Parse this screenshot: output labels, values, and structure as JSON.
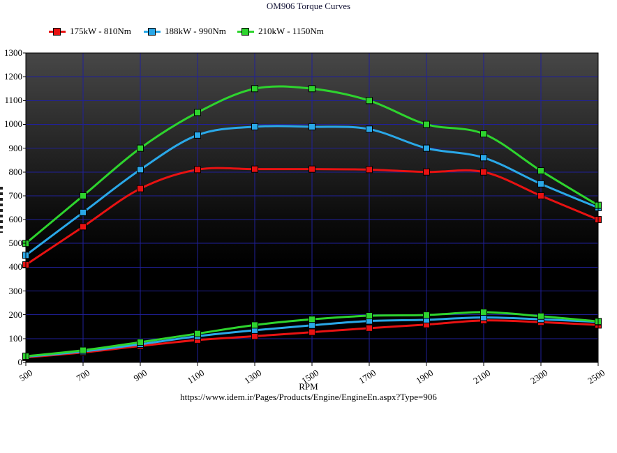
{
  "page": {
    "caption_url": "https://www.idem.ir/Pages/Products/Engine/EngineEn.aspx?Type=906"
  },
  "chart_data": {
    "type": "line",
    "title": "OM906 Torque Curves",
    "xlabel": "RPM",
    "x": [
      500,
      700,
      900,
      1100,
      1300,
      1500,
      1700,
      1900,
      2100,
      2300,
      2500
    ],
    "xlim": [
      500,
      2500
    ],
    "ylim": [
      0,
      1300
    ],
    "y_ticks": [
      0,
      100,
      200,
      300,
      400,
      500,
      600,
      700,
      800,
      900,
      1000,
      1100,
      1200,
      1300
    ],
    "grid": true,
    "legend_position": "top-left",
    "colors": {
      "grid": "#20209a",
      "axis": "#000000",
      "title": "#131335",
      "plot_bg_top": "#474747",
      "plot_bg_bottom": "#000000"
    },
    "series": [
      {
        "name": "175kW - 810Nm",
        "color": "#e81212",
        "kind": "torque (Nm)",
        "values": [
          410,
          570,
          730,
          810,
          812,
          812,
          810,
          800,
          800,
          700,
          600
        ]
      },
      {
        "name": "188kW - 990Nm",
        "color": "#2aa8e8",
        "kind": "torque (Nm)",
        "values": [
          450,
          630,
          810,
          955,
          990,
          990,
          980,
          900,
          860,
          750,
          650
        ]
      },
      {
        "name": "210kW - 1150Nm",
        "color": "#2ed42e",
        "kind": "torque (Nm)",
        "values": [
          500,
          700,
          900,
          1050,
          1150,
          1150,
          1100,
          1000,
          960,
          805,
          660
        ]
      },
      {
        "name": "175kW - 810Nm",
        "color": "#e81212",
        "kind": "power (kW)",
        "values": [
          21,
          42,
          69,
          94,
          110,
          127,
          144,
          159,
          176,
          169,
          157
        ]
      },
      {
        "name": "188kW - 990Nm",
        "color": "#2aa8e8",
        "kind": "power (kW)",
        "values": [
          24,
          46,
          76,
          110,
          135,
          156,
          174,
          179,
          189,
          181,
          170
        ]
      },
      {
        "name": "210kW - 1150Nm",
        "color": "#2ed42e",
        "kind": "power (kW)",
        "values": [
          26,
          51,
          85,
          121,
          157,
          181,
          196,
          199,
          211,
          194,
          172
        ]
      }
    ]
  }
}
